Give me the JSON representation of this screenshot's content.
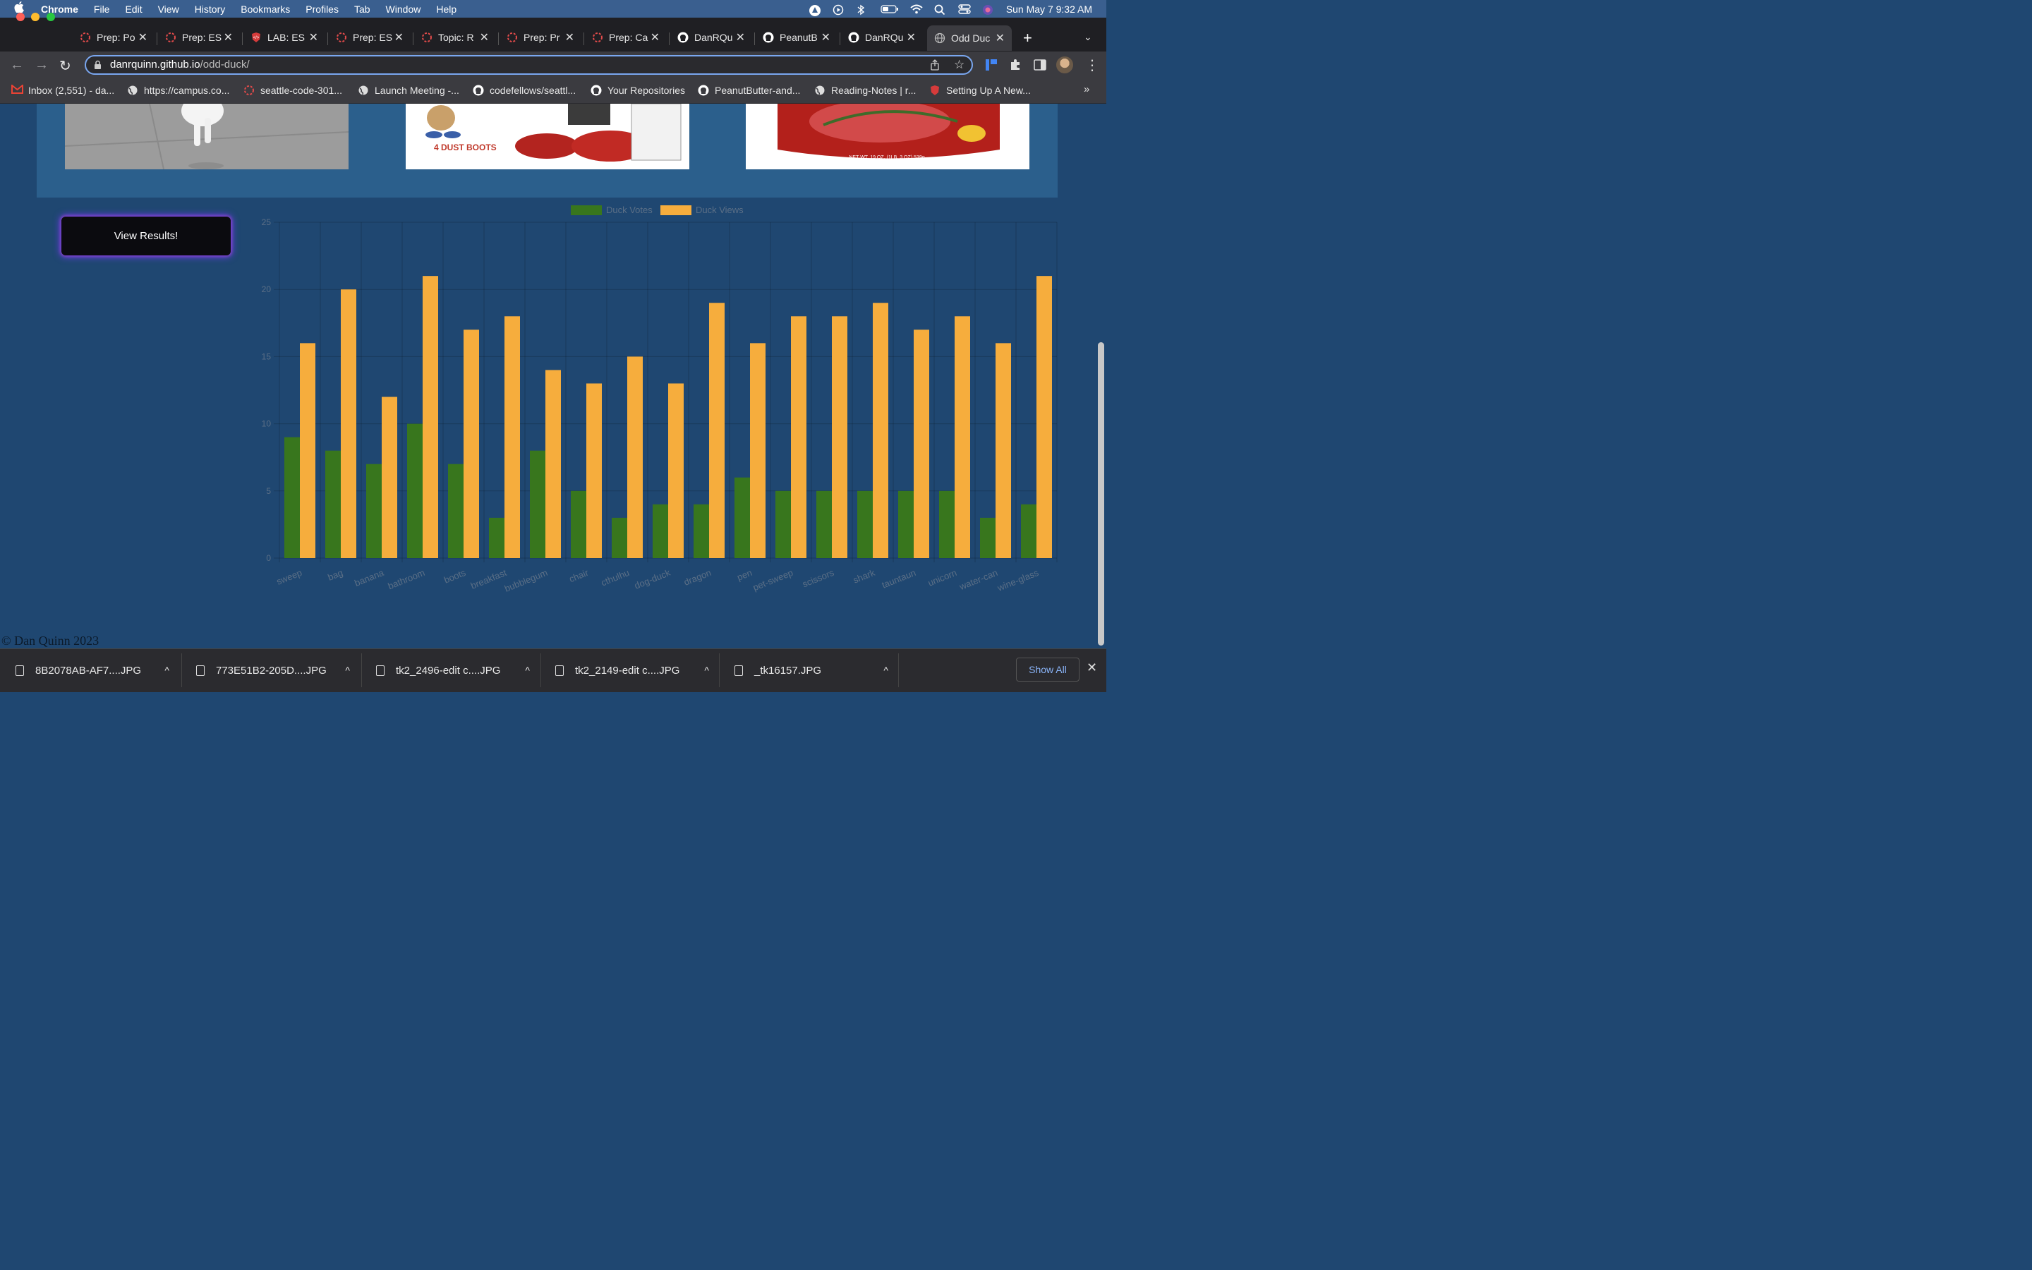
{
  "menubar": {
    "app": "Chrome",
    "menus": [
      "File",
      "Edit",
      "View",
      "History",
      "Bookmarks",
      "Profiles",
      "Tab",
      "Window",
      "Help"
    ],
    "datetime": "Sun May 7  9:32 AM"
  },
  "tabs": [
    {
      "label": "Prep: Po",
      "icon": "codefellows-icon"
    },
    {
      "label": "Prep: ES",
      "icon": "codefellows-icon"
    },
    {
      "label": "LAB: ES",
      "icon": "code-shield-icon"
    },
    {
      "label": "Prep: ES",
      "icon": "codefellows-icon"
    },
    {
      "label": "Topic: R",
      "icon": "codefellows-icon"
    },
    {
      "label": "Prep: Pr",
      "icon": "codefellows-icon"
    },
    {
      "label": "Prep: Ca",
      "icon": "codefellows-icon"
    },
    {
      "label": "DanRQu",
      "icon": "github-icon"
    },
    {
      "label": "PeanutB",
      "icon": "github-icon"
    },
    {
      "label": "DanRQu",
      "icon": "github-icon"
    },
    {
      "label": "Odd Duc",
      "icon": "globe-icon",
      "active": true
    }
  ],
  "address": {
    "host": "danrquinn.github.io",
    "path": "/odd-duck/"
  },
  "bookmarks": [
    {
      "label": "Inbox (2,551) - da...",
      "icon": "gmail-icon"
    },
    {
      "label": "https://campus.co...",
      "icon": "globe-icon"
    },
    {
      "label": "seattle-code-301...",
      "icon": "codefellows-icon"
    },
    {
      "label": "Launch Meeting -...",
      "icon": "globe-icon"
    },
    {
      "label": "codefellows/seattl...",
      "icon": "github-icon"
    },
    {
      "label": "Your Repositories",
      "icon": "github-icon"
    },
    {
      "label": "PeanutButter-and...",
      "icon": "github-icon"
    },
    {
      "label": "Reading-Notes | r...",
      "icon": "globe-icon"
    },
    {
      "label": "Setting Up A New...",
      "icon": "code-shield-icon"
    }
  ],
  "page": {
    "results_button": "View Results!",
    "copyright": "© Dan Quinn 2023"
  },
  "chart_data": {
    "type": "bar",
    "categories": [
      "sweep",
      "bag",
      "banana",
      "bathroom",
      "boots",
      "breakfast",
      "bubblegum",
      "chair",
      "cthulhu",
      "dog-duck",
      "dragon",
      "pen",
      "pet-sweep",
      "scissors",
      "shark",
      "tauntaun",
      "unicorn",
      "water-can",
      "wine-glass"
    ],
    "series": [
      {
        "name": "Duck Votes",
        "color": "#38761d",
        "values": [
          9,
          8,
          7,
          10,
          7,
          3,
          8,
          5,
          3,
          4,
          4,
          6,
          5,
          5,
          5,
          5,
          5,
          3,
          4
        ]
      },
      {
        "name": "Duck Views",
        "color": "#f6ad3d",
        "values": [
          16,
          20,
          12,
          21,
          17,
          18,
          14,
          13,
          15,
          13,
          19,
          16,
          18,
          18,
          19,
          17,
          18,
          16,
          21
        ]
      }
    ],
    "yticks": [
      "0",
      "5",
      "10",
      "15",
      "20",
      "25"
    ],
    "ylim": [
      0,
      25
    ],
    "legend": "top",
    "grid": true
  },
  "downloads": {
    "items": [
      "8B2078AB-AF7....JPG",
      "773E51B2-205D....JPG",
      "tk2_2496-edit c....JPG",
      "tk2_2149-edit c....JPG",
      "_tk16157.JPG"
    ],
    "show_all": "Show All"
  }
}
